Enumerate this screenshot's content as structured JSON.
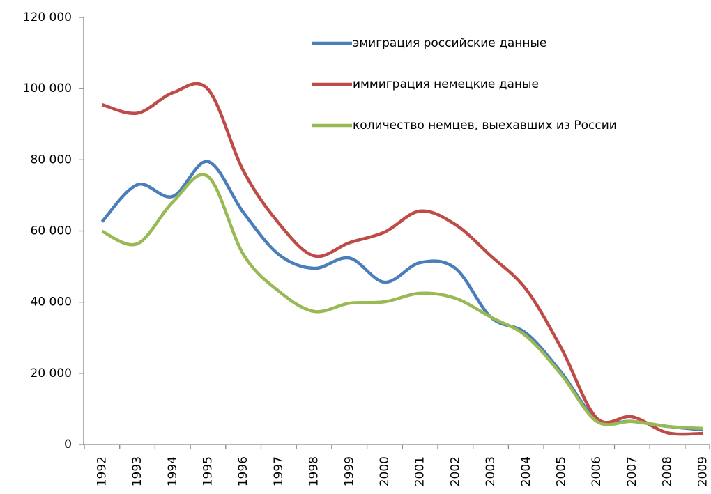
{
  "chart_data": {
    "type": "line",
    "categories": [
      "1992",
      "1993",
      "1994",
      "1995",
      "1996",
      "1997",
      "1998",
      "1999",
      "2000",
      "2001",
      "2002",
      "2003",
      "2004",
      "2005",
      "2006",
      "2007",
      "2008",
      "2009"
    ],
    "series": [
      {
        "name": "эмиграция российские данные",
        "color": "#4a7ebb",
        "values": [
          62600,
          73000,
          69700,
          79500,
          65200,
          53400,
          49500,
          52400,
          45600,
          51100,
          49500,
          35800,
          31300,
          20200,
          7000,
          6500,
          5100,
          4100
        ]
      },
      {
        "name": "иммиграция немецкие даные",
        "color": "#be4b48",
        "values": [
          95500,
          93100,
          98800,
          99800,
          76900,
          62200,
          53000,
          56700,
          59700,
          65600,
          61800,
          53000,
          43600,
          27000,
          7400,
          7800,
          3300,
          3100
        ]
      },
      {
        "name": "количество немцев, выехавших из России",
        "color": "#98b954",
        "values": [
          59900,
          56400,
          68100,
          75300,
          53400,
          43100,
          37400,
          39700,
          40100,
          42500,
          41100,
          35800,
          30500,
          19600,
          6500,
          6500,
          5100,
          4500
        ]
      }
    ],
    "ylim": [
      0,
      120000
    ],
    "yticks": [
      0,
      {
        "value": 20000,
        "label": "20 000"
      },
      {
        "value": 40000,
        "label": "40 000"
      },
      {
        "value": 60000,
        "label": "60 000"
      },
      {
        "value": 80000,
        "label": "80 000"
      },
      {
        "value": 100000,
        "label": "100 000"
      },
      {
        "value": 120000,
        "label": "120 000"
      }
    ],
    "grid": false,
    "smooth": true
  }
}
